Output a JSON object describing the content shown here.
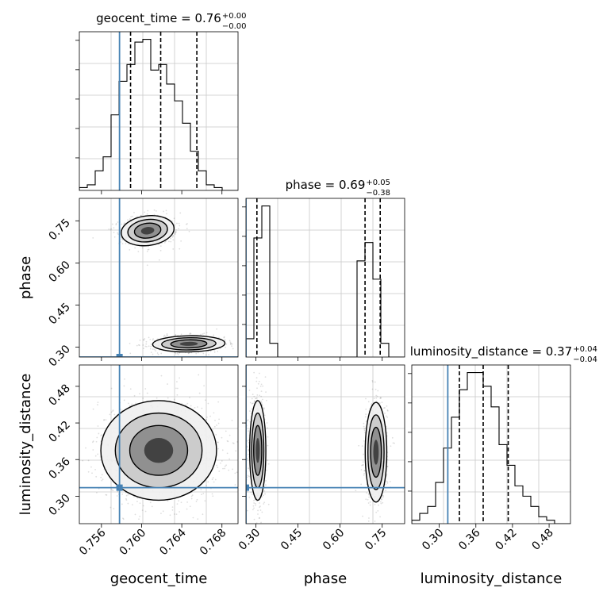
{
  "chart_data": {
    "type": "corner",
    "truth_color": "#4682b4",
    "line_color": "#000000",
    "parameters": [
      {
        "name": "geocent_time",
        "title_value": "0.76",
        "title_plus": "+0.00",
        "title_minus": "−0.00"
      },
      {
        "name": "phase",
        "title_value": "0.69",
        "title_plus": "+0.05",
        "title_minus": "−0.38"
      },
      {
        "name": "luminosity_distance",
        "title_value": "0.37",
        "title_plus": "+0.04",
        "title_minus": "−0.04"
      }
    ],
    "ranges": {
      "geocent_time": [
        0.7538,
        0.7696
      ],
      "phase": [
        0.265,
        0.83
      ],
      "luminosity_distance": [
        0.255,
        0.515
      ]
    },
    "truths": {
      "geocent_time": 0.7578,
      "phase": 0.265,
      "luminosity_distance": 0.314
    },
    "x_ticks": {
      "geocent_time": [
        "0.756",
        "0.760",
        "0.764",
        "0.768"
      ],
      "phase": [
        "0.30",
        "0.45",
        "0.60",
        "0.75"
      ],
      "luminosity_distance": [
        "0.30",
        "0.36",
        "0.42",
        "0.48"
      ]
    },
    "y_ticks": {
      "phase": [
        "0.30",
        "0.45",
        "0.60",
        "0.75"
      ],
      "luminosity_distance": [
        "0.30",
        "0.36",
        "0.42",
        "0.48"
      ]
    },
    "hist": {
      "geocent_time": {
        "edges": [
          0.7538,
          0.75459,
          0.75538,
          0.75617,
          0.75696,
          0.75775,
          0.75854,
          0.75933,
          0.76012,
          0.76091,
          0.7617,
          0.76249,
          0.76328,
          0.76407,
          0.76486,
          0.76565,
          0.76644,
          0.76723,
          0.76802,
          0.76881,
          0.7696
        ],
        "counts": [
          1,
          2,
          7,
          12,
          27,
          39,
          45,
          53,
          54,
          43,
          45,
          38,
          32,
          24,
          14,
          7,
          2,
          1,
          0,
          0
        ],
        "quantiles": [
          0.7589,
          0.7619,
          0.7655
        ]
      },
      "phase": {
        "edges": [
          0.265,
          0.29325,
          0.3215,
          0.34975,
          0.378,
          0.40625,
          0.4345,
          0.46275,
          0.491,
          0.51925,
          0.5475,
          0.57575,
          0.604,
          0.63225,
          0.6605,
          0.68875,
          0.717,
          0.74525,
          0.7735,
          0.80175,
          0.83
        ],
        "counts": [
          4,
          26,
          33,
          3,
          0,
          0,
          0,
          0,
          0,
          0,
          0,
          0,
          0,
          0,
          21,
          25,
          17,
          3,
          0,
          0
        ],
        "quantiles": [
          0.304,
          0.689,
          0.743
        ]
      },
      "luminosity_distance": {
        "edges": [
          0.255,
          0.268,
          0.281,
          0.294,
          0.307,
          0.32,
          0.333,
          0.346,
          0.359,
          0.372,
          0.385,
          0.398,
          0.411,
          0.424,
          0.437,
          0.45,
          0.463,
          0.476,
          0.489,
          0.502,
          0.515
        ],
        "counts": [
          1,
          3,
          5,
          12,
          22,
          31,
          39,
          44,
          44,
          40,
          34,
          23,
          17,
          11,
          8,
          5,
          2,
          1,
          0,
          0
        ],
        "quantiles": [
          0.333,
          0.372,
          0.413
        ]
      }
    },
    "scatter": [
      {
        "x": "geocent_time",
        "y": "phase",
        "clusters": [
          {
            "cx": 0.7606,
            "cy": 0.715,
            "sx": 0.0011,
            "sy": 0.022,
            "rot": 0.35,
            "n": 700
          },
          {
            "cx": 0.7647,
            "cy": 0.312,
            "sx": 0.0015,
            "sy": 0.012,
            "rot": 0.05,
            "n": 700
          }
        ]
      },
      {
        "x": "geocent_time",
        "y": "luminosity_distance",
        "clusters": [
          {
            "cx": 0.7617,
            "cy": 0.375,
            "sx": 0.0024,
            "sy": 0.034,
            "rot": 0,
            "n": 1300
          }
        ]
      },
      {
        "x": "phase",
        "y": "luminosity_distance",
        "clusters": [
          {
            "cx": 0.307,
            "cy": 0.375,
            "sx": 0.012,
            "sy": 0.034,
            "rot": 0,
            "n": 700
          },
          {
            "cx": 0.728,
            "cy": 0.372,
            "sx": 0.016,
            "sy": 0.034,
            "rot": 0,
            "n": 700
          }
        ]
      }
    ]
  }
}
